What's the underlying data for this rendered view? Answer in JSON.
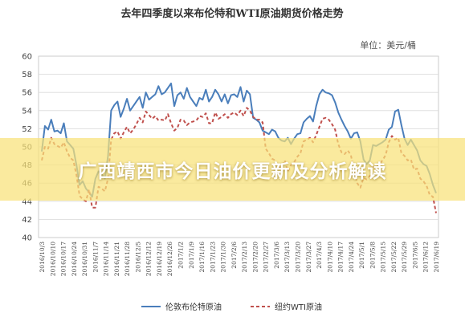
{
  "chart_data": {
    "type": "line",
    "title": "去年四季度以来布伦特和WTI原油期货价格走势",
    "unit": "单位：美元/桶",
    "xlabel": "",
    "ylabel": "",
    "ylim": [
      40,
      60
    ],
    "yticks": [
      40,
      42,
      44,
      46,
      48,
      50,
      52,
      54,
      56,
      58,
      60
    ],
    "grid": true,
    "legend_position": "bottom",
    "x_tick_labels": [
      "2016/10/3",
      "2016/10/10",
      "2016/10/17",
      "2016/10/24",
      "2016/10/31",
      "2016/11/7",
      "2016/11/14",
      "2016/11/21",
      "2016/11/28",
      "2016/12/5",
      "2016/12/12",
      "2016/12/19",
      "2016/12/26",
      "2017/1/2",
      "2017/1/9",
      "2017/1/16",
      "2017/1/23",
      "2017/1/30",
      "2017/2/6",
      "2017/2/13",
      "2017/2/20",
      "2017/2/27",
      "2017/3/6",
      "2017/3/13",
      "2017/3/20",
      "2017/3/27",
      "2017/4/3",
      "2017/4/10",
      "2017/4/17",
      "2017/4/24",
      "2017/5/1",
      "2017/5/8",
      "2017/5/15",
      "2017/5/22",
      "2017/5/29",
      "2017/6/5",
      "2017/6/12",
      "2017/6/19"
    ],
    "series": [
      {
        "name": "伦敦布伦特原油",
        "color": "#4a7ebb",
        "style": "solid",
        "values": [
          49.5,
          52.3,
          51.9,
          53.0,
          51.7,
          51.8,
          51.5,
          52.6,
          50.6,
          50.2,
          49.8,
          48.0,
          45.8,
          46.2,
          45.4,
          45.0,
          44.5,
          46.5,
          47.3,
          47.0,
          46.5,
          49.0,
          54.0,
          54.6,
          55.0,
          53.3,
          54.2,
          55.3,
          54.0,
          54.5,
          55.0,
          55.5,
          54.3,
          56.0,
          55.2,
          55.5,
          55.8,
          56.7,
          55.8,
          56.0,
          56.5,
          57.0,
          54.5,
          55.7,
          56.0,
          55.3,
          56.5,
          55.5,
          55.0,
          54.5,
          55.4,
          55.2,
          56.3,
          55.0,
          55.5,
          56.3,
          55.8,
          55.0,
          55.8,
          54.8,
          55.7,
          55.8,
          55.5,
          56.6,
          55.0,
          56.2,
          55.8,
          53.2,
          53.0,
          52.7,
          51.8,
          51.6,
          51.4,
          51.9,
          51.7,
          51.0,
          50.7,
          50.6,
          51.0,
          50.3,
          50.9,
          51.4,
          51.5,
          52.7,
          53.1,
          53.4,
          52.8,
          54.5,
          55.8,
          56.3,
          56.0,
          55.9,
          55.7,
          54.9,
          53.8,
          53.0,
          52.3,
          51.7,
          50.9,
          51.5,
          51.6,
          50.6,
          48.6,
          48.1,
          48.5,
          50.2,
          50.1,
          50.3,
          50.5,
          50.8,
          51.9,
          52.2,
          53.9,
          54.1,
          52.4,
          50.9,
          50.2,
          50.8,
          50.2,
          49.6,
          48.5,
          48.1,
          47.9,
          47.0,
          45.8,
          44.9
        ]
      },
      {
        "name": "纽约WTI原油",
        "color": "#c0504d",
        "style": "dashed",
        "values": [
          48.5,
          50.0,
          49.8,
          51.0,
          50.3,
          50.1,
          49.9,
          50.5,
          49.5,
          48.8,
          48.5,
          46.9,
          44.6,
          44.2,
          44.0,
          45.3,
          43.3,
          43.3,
          45.6,
          45.4,
          45.1,
          46.5,
          50.8,
          51.5,
          51.7,
          50.9,
          51.6,
          52.2,
          51.5,
          51.9,
          52.5,
          53.2,
          52.7,
          53.9,
          53.5,
          53.1,
          53.4,
          52.9,
          53.0,
          52.9,
          53.6,
          52.6,
          51.8,
          52.1,
          53.0,
          52.9,
          52.4,
          52.7,
          52.8,
          52.9,
          53.4,
          53.3,
          53.7,
          52.6,
          52.6,
          53.8,
          53.1,
          53.3,
          53.6,
          53.2,
          53.6,
          53.8,
          53.5,
          54.0,
          53.4,
          54.3,
          54.0,
          53.3,
          53.0,
          53.0,
          52.7,
          49.8,
          49.3,
          48.7,
          48.5,
          47.8,
          47.7,
          48.5,
          47.3,
          48.0,
          48.3,
          48.9,
          49.3,
          50.6,
          50.8,
          51.0,
          50.5,
          51.3,
          52.2,
          53.1,
          53.2,
          53.0,
          52.5,
          51.9,
          50.3,
          49.4,
          49.2,
          49.6,
          49.1,
          47.3,
          46.0,
          45.5,
          46.6,
          46.4,
          46.8,
          47.8,
          47.6,
          48.1,
          48.5,
          49.1,
          50.5,
          51.2,
          50.8,
          51.0,
          49.3,
          49.0,
          48.5,
          48.6,
          47.5,
          47.6,
          46.5,
          46.2,
          45.7,
          44.7,
          44.5,
          42.7
        ]
      }
    ]
  },
  "banner": {
    "text": "广西靖西市今日油价更新及分析解读"
  }
}
